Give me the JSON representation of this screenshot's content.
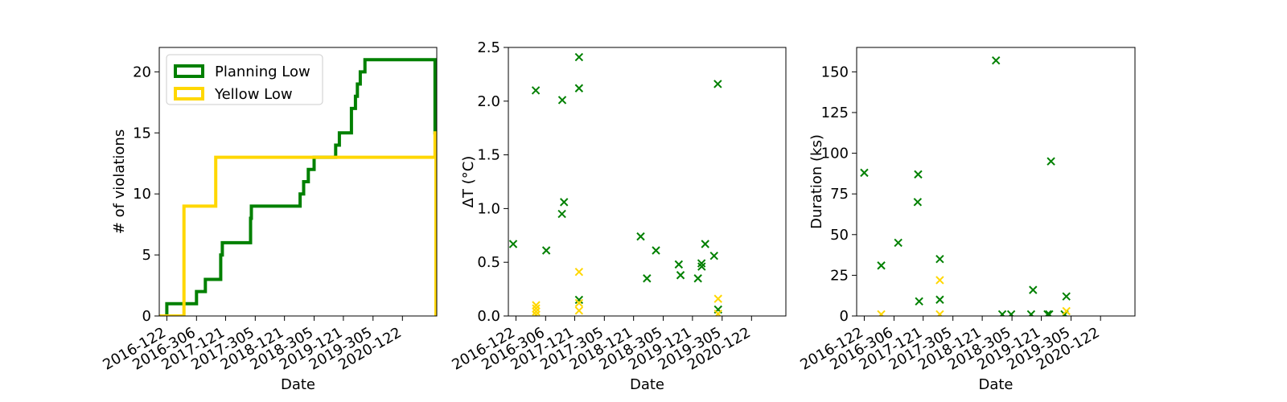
{
  "colors": {
    "planning": "#008000",
    "yellow": "#FFD700"
  },
  "chart_data": [
    {
      "type": "line",
      "step": true,
      "xlabel": "Date",
      "ylabel": "# of violations",
      "xlim": [
        "2016-075",
        "2020-335"
      ],
      "ylim": [
        0,
        22
      ],
      "x_ticks": [
        "2016-122",
        "2016-306",
        "2017-121",
        "2017-305",
        "2018-121",
        "2018-305",
        "2019-121",
        "2019-305",
        "2020-122"
      ],
      "y_ticks": [
        0,
        5,
        10,
        15,
        20
      ],
      "legend": {
        "position": "top-left",
        "entries": [
          "Planning Low",
          "Yellow Low"
        ]
      },
      "series": [
        {
          "name": "Planning Low",
          "color": "#008000",
          "x": [
            "2016-075",
            "2016-122",
            "2016-306",
            "2016-361",
            "2017-091",
            "2017-101",
            "2017-276",
            "2017-281",
            "2018-218",
            "2018-240",
            "2018-269",
            "2018-305",
            "2019-073",
            "2019-096",
            "2019-171",
            "2019-196",
            "2019-208",
            "2019-226",
            "2019-255",
            "2020-324",
            "2020-335"
          ],
          "y": [
            0,
            1,
            2,
            3,
            5,
            6,
            8,
            9,
            10,
            11,
            12,
            13,
            14,
            15,
            17,
            18,
            19,
            20,
            21,
            15,
            15
          ]
        },
        {
          "name": "Yellow Low",
          "color": "#FFD700",
          "x": [
            "2016-075",
            "2016-228",
            "2017-060",
            "2017-275",
            "2018-040",
            "2020-324",
            "2020-330"
          ],
          "y": [
            0,
            9,
            13,
            13,
            13,
            15,
            0
          ]
        }
      ]
    },
    {
      "type": "scatter",
      "marker": "x",
      "xlabel": "Date",
      "ylabel": "ΔT (°C)",
      "xlim": [
        "2016-075",
        "2020-335"
      ],
      "ylim": [
        0,
        2.5
      ],
      "x_ticks": [
        "2016-122",
        "2016-306",
        "2017-121",
        "2017-305",
        "2018-121",
        "2018-305",
        "2019-121",
        "2019-305",
        "2020-122"
      ],
      "y_ticks": [
        "0.0",
        "0.5",
        "1.0",
        "1.5",
        "2.0",
        "2.5"
      ],
      "series": [
        {
          "name": "Planning Low",
          "color": "#008000",
          "points": [
            [
              "2016-105",
              0.67
            ],
            [
              "2016-245",
              2.1
            ],
            [
              "2016-310",
              0.61
            ],
            [
              "2017-044",
              2.01
            ],
            [
              "2017-042",
              0.95
            ],
            [
              "2017-055",
              1.06
            ],
            [
              "2017-148",
              2.41
            ],
            [
              "2017-148",
              2.12
            ],
            [
              "2017-148",
              0.15
            ],
            [
              "2018-165",
              0.74
            ],
            [
              "2018-204",
              0.35
            ],
            [
              "2018-260",
              0.61
            ],
            [
              "2019-036",
              0.48
            ],
            [
              "2019-047",
              0.38
            ],
            [
              "2019-155",
              0.35
            ],
            [
              "2019-177",
              0.49
            ],
            [
              "2019-178",
              0.46
            ],
            [
              "2019-200",
              0.67
            ],
            [
              "2019-255",
              0.56
            ],
            [
              "2019-278",
              2.16
            ],
            [
              "2019-280",
              0.06
            ]
          ]
        },
        {
          "name": "Yellow Low",
          "color": "#FFD700",
          "points": [
            [
              "2016-247",
              0.1
            ],
            [
              "2016-247",
              0.07
            ],
            [
              "2016-247",
              0.04
            ],
            [
              "2016-247",
              0.01
            ],
            [
              "2017-148",
              0.41
            ],
            [
              "2017-148",
              0.12
            ],
            [
              "2017-148",
              0.05
            ],
            [
              "2019-280",
              0.16
            ],
            [
              "2019-280",
              0.02
            ]
          ]
        }
      ]
    },
    {
      "type": "scatter",
      "marker": "x",
      "xlabel": "Date",
      "ylabel": "Duration (ks)",
      "xlim": [
        "2016-075",
        "2020-335"
      ],
      "ylim": [
        0,
        165
      ],
      "x_ticks": [
        "2016-122",
        "2016-306",
        "2017-121",
        "2017-305",
        "2018-121",
        "2018-305",
        "2019-121",
        "2019-305",
        "2020-122"
      ],
      "y_ticks": [
        0,
        25,
        50,
        75,
        100,
        125,
        150
      ],
      "series": [
        {
          "name": "Planning Low",
          "color": "#008000",
          "points": [
            [
              "2016-122",
              88
            ],
            [
              "2016-227",
              31
            ],
            [
              "2016-332",
              45
            ],
            [
              "2017-090",
              87
            ],
            [
              "2017-087",
              70
            ],
            [
              "2017-096",
              9
            ],
            [
              "2017-224",
              35
            ],
            [
              "2017-224",
              10
            ],
            [
              "2018-206",
              157
            ],
            [
              "2018-245",
              1
            ],
            [
              "2018-300",
              1
            ],
            [
              "2019-058",
              1
            ],
            [
              "2019-070",
              16
            ],
            [
              "2019-160",
              1
            ],
            [
              "2019-170",
              1
            ],
            [
              "2019-181",
              95
            ],
            [
              "2019-265",
              1
            ],
            [
              "2019-276",
              12
            ]
          ]
        },
        {
          "name": "Yellow Low",
          "color": "#FFD700",
          "points": [
            [
              "2016-227",
              1
            ],
            [
              "2017-224",
              22
            ],
            [
              "2017-224",
              1
            ],
            [
              "2019-276",
              3
            ]
          ]
        }
      ]
    }
  ]
}
